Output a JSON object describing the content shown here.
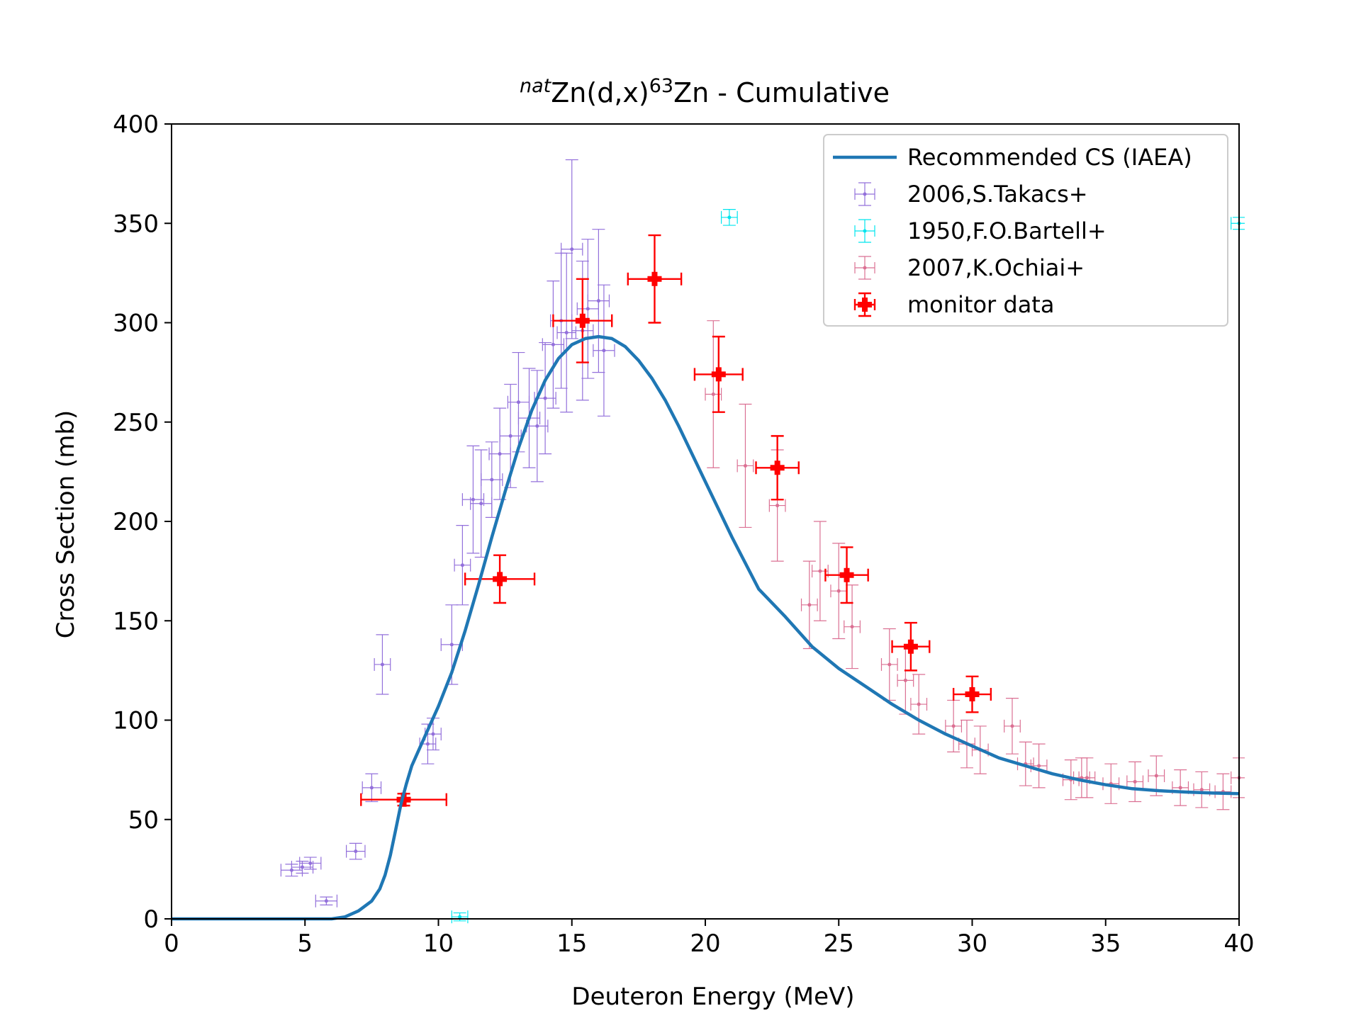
{
  "chart_data": {
    "type": "scatter",
    "title": {
      "prefix": "nat",
      "main": "Zn(d,x)",
      "mass": "63",
      "rest": "Zn - Cumulative"
    },
    "xlabel": "Deuteron Energy (MeV)",
    "ylabel": "Cross Section (mb)",
    "xlim": [
      0,
      40
    ],
    "ylim": [
      0,
      400
    ],
    "xticks": [
      0,
      5,
      10,
      15,
      20,
      25,
      30,
      35,
      40
    ],
    "yticks": [
      0,
      50,
      100,
      150,
      200,
      250,
      300,
      350,
      400
    ],
    "grid": false,
    "legend_position": "top-right",
    "series": [
      {
        "name": "Recommended CS (IAEA)",
        "kind": "line",
        "color": "#1f77b4",
        "points": [
          [
            0,
            0
          ],
          [
            6,
            0
          ],
          [
            6.5,
            1
          ],
          [
            7,
            4
          ],
          [
            7.5,
            9
          ],
          [
            7.8,
            15
          ],
          [
            8.0,
            22
          ],
          [
            8.2,
            32
          ],
          [
            8.4,
            45
          ],
          [
            8.6,
            58
          ],
          [
            8.8,
            68
          ],
          [
            9.0,
            77
          ],
          [
            9.3,
            86
          ],
          [
            9.6,
            95
          ],
          [
            10,
            107
          ],
          [
            10.5,
            124
          ],
          [
            11,
            145
          ],
          [
            11.5,
            168
          ],
          [
            12,
            192
          ],
          [
            12.5,
            215
          ],
          [
            13,
            237
          ],
          [
            13.5,
            256
          ],
          [
            14,
            271
          ],
          [
            14.5,
            282
          ],
          [
            15,
            289
          ],
          [
            15.5,
            292
          ],
          [
            16,
            293
          ],
          [
            16.5,
            292
          ],
          [
            17,
            288
          ],
          [
            17.5,
            281
          ],
          [
            18,
            272
          ],
          [
            18.5,
            261
          ],
          [
            19,
            248
          ],
          [
            19.5,
            234
          ],
          [
            20,
            220
          ],
          [
            21,
            192
          ],
          [
            22,
            166
          ],
          [
            23,
            152
          ],
          [
            24,
            137
          ],
          [
            25,
            126
          ],
          [
            26,
            117
          ],
          [
            27,
            108
          ],
          [
            28,
            100
          ],
          [
            29,
            93
          ],
          [
            30,
            87
          ],
          [
            31,
            81
          ],
          [
            32,
            77
          ],
          [
            33,
            73
          ],
          [
            34,
            70
          ],
          [
            35,
            67.5
          ],
          [
            36,
            65.5
          ],
          [
            37,
            64.5
          ],
          [
            38,
            63.8
          ],
          [
            39,
            63.3
          ],
          [
            40,
            63
          ]
        ]
      },
      {
        "name": "2006,S.Takacs+",
        "kind": "errorbar",
        "color": "#9370db",
        "points": [
          {
            "x": 4.5,
            "y": 24.5,
            "xerr": 0.4,
            "yerr": 3
          },
          {
            "x": 4.9,
            "y": 26,
            "xerr": 0.4,
            "yerr": 3
          },
          {
            "x": 5.2,
            "y": 28,
            "xerr": 0.4,
            "yerr": 3
          },
          {
            "x": 5.8,
            "y": 9,
            "xerr": 0.4,
            "yerr": 2
          },
          {
            "x": 6.9,
            "y": 34,
            "xerr": 0.35,
            "yerr": 4
          },
          {
            "x": 7.5,
            "y": 66,
            "xerr": 0.35,
            "yerr": 7
          },
          {
            "x": 7.9,
            "y": 128,
            "xerr": 0.3,
            "yerr": 15
          },
          {
            "x": 9.6,
            "y": 88,
            "xerr": 0.3,
            "yerr": 10
          },
          {
            "x": 9.8,
            "y": 93,
            "xerr": 0.3,
            "yerr": 8
          },
          {
            "x": 10.5,
            "y": 138,
            "xerr": 0.4,
            "yerr": 20
          },
          {
            "x": 10.9,
            "y": 178,
            "xerr": 0.3,
            "yerr": 20
          },
          {
            "x": 11.3,
            "y": 211,
            "xerr": 0.4,
            "yerr": 27
          },
          {
            "x": 11.6,
            "y": 209,
            "xerr": 0.4,
            "yerr": 27
          },
          {
            "x": 12.0,
            "y": 221,
            "xerr": 0.4,
            "yerr": 19
          },
          {
            "x": 12.3,
            "y": 234,
            "xerr": 0.4,
            "yerr": 23
          },
          {
            "x": 12.7,
            "y": 243,
            "xerr": 0.4,
            "yerr": 26
          },
          {
            "x": 13.0,
            "y": 260,
            "xerr": 0.4,
            "yerr": 25
          },
          {
            "x": 13.4,
            "y": 252,
            "xerr": 0.4,
            "yerr": 25
          },
          {
            "x": 13.7,
            "y": 248,
            "xerr": 0.4,
            "yerr": 28
          },
          {
            "x": 14.0,
            "y": 262,
            "xerr": 0.4,
            "yerr": 28
          },
          {
            "x": 14.3,
            "y": 289,
            "xerr": 0.4,
            "yerr": 32
          },
          {
            "x": 14.6,
            "y": 301,
            "xerr": 0.4,
            "yerr": 34
          },
          {
            "x": 14.8,
            "y": 295,
            "xerr": 0.35,
            "yerr": 40
          },
          {
            "x": 15.0,
            "y": 337,
            "xerr": 0.4,
            "yerr": 45
          },
          {
            "x": 15.4,
            "y": 296,
            "xerr": 0.4,
            "yerr": 35
          },
          {
            "x": 15.6,
            "y": 307,
            "xerr": 0.4,
            "yerr": 35
          },
          {
            "x": 16.0,
            "y": 311,
            "xerr": 0.4,
            "yerr": 36
          },
          {
            "x": 16.2,
            "y": 286,
            "xerr": 0.4,
            "yerr": 33
          }
        ]
      },
      {
        "name": "1950,F.O.Bartell+",
        "kind": "errorbar",
        "color": "#00e5ee",
        "points": [
          {
            "x": 10.8,
            "y": 1,
            "xerr": 0.3,
            "yerr": 2
          },
          {
            "x": 20.9,
            "y": 353,
            "xerr": 0.3,
            "yerr": 4
          },
          {
            "x": 40,
            "y": 350,
            "xerr": 0.3,
            "yerr": 3
          }
        ]
      },
      {
        "name": "2007,K.Ochiai+",
        "kind": "errorbar",
        "color": "#db7093",
        "points": [
          {
            "x": 20.3,
            "y": 264,
            "xerr": 0.3,
            "yerr": 37
          },
          {
            "x": 21.5,
            "y": 228,
            "xerr": 0.3,
            "yerr": 31
          },
          {
            "x": 22.7,
            "y": 208,
            "xerr": 0.3,
            "yerr": 28
          },
          {
            "x": 23.9,
            "y": 158,
            "xerr": 0.3,
            "yerr": 22
          },
          {
            "x": 24.3,
            "y": 175,
            "xerr": 0.3,
            "yerr": 25
          },
          {
            "x": 25.0,
            "y": 165,
            "xerr": 0.3,
            "yerr": 24
          },
          {
            "x": 25.5,
            "y": 147,
            "xerr": 0.3,
            "yerr": 21
          },
          {
            "x": 26.9,
            "y": 128,
            "xerr": 0.3,
            "yerr": 18
          },
          {
            "x": 27.5,
            "y": 120,
            "xerr": 0.3,
            "yerr": 17
          },
          {
            "x": 28.0,
            "y": 108,
            "xerr": 0.3,
            "yerr": 15
          },
          {
            "x": 29.3,
            "y": 97,
            "xerr": 0.3,
            "yerr": 13
          },
          {
            "x": 29.8,
            "y": 88,
            "xerr": 0.3,
            "yerr": 12
          },
          {
            "x": 30.3,
            "y": 85,
            "xerr": 0.3,
            "yerr": 12
          },
          {
            "x": 31.5,
            "y": 97,
            "xerr": 0.3,
            "yerr": 14
          },
          {
            "x": 32.0,
            "y": 78,
            "xerr": 0.3,
            "yerr": 11
          },
          {
            "x": 32.5,
            "y": 77,
            "xerr": 0.3,
            "yerr": 11
          },
          {
            "x": 33.7,
            "y": 70,
            "xerr": 0.3,
            "yerr": 10
          },
          {
            "x": 34.1,
            "y": 71,
            "xerr": 0.3,
            "yerr": 10
          },
          {
            "x": 34.3,
            "y": 71,
            "xerr": 0.3,
            "yerr": 10
          },
          {
            "x": 35.2,
            "y": 68,
            "xerr": 0.3,
            "yerr": 10
          },
          {
            "x": 36.1,
            "y": 69,
            "xerr": 0.3,
            "yerr": 10
          },
          {
            "x": 36.9,
            "y": 72,
            "xerr": 0.3,
            "yerr": 10
          },
          {
            "x": 37.8,
            "y": 66,
            "xerr": 0.3,
            "yerr": 9
          },
          {
            "x": 38.6,
            "y": 65,
            "xerr": 0.3,
            "yerr": 9
          },
          {
            "x": 39.4,
            "y": 64,
            "xerr": 0.3,
            "yerr": 9
          },
          {
            "x": 40.0,
            "y": 71,
            "xerr": 0.3,
            "yerr": 10
          }
        ]
      },
      {
        "name": "monitor data",
        "kind": "errorbar",
        "color": "#ff0000",
        "points": [
          {
            "x": 8.7,
            "y": 60,
            "xerr": 1.6,
            "yerr": 3
          },
          {
            "x": 12.3,
            "y": 171,
            "xerr": 1.3,
            "yerr": 12
          },
          {
            "x": 15.4,
            "y": 301,
            "xerr": 1.1,
            "yerr": 21
          },
          {
            "x": 18.1,
            "y": 322,
            "xerr": 1.0,
            "yerr": 22
          },
          {
            "x": 20.5,
            "y": 274,
            "xerr": 0.9,
            "yerr": 19
          },
          {
            "x": 22.7,
            "y": 227,
            "xerr": 0.8,
            "yerr": 16
          },
          {
            "x": 25.3,
            "y": 173,
            "xerr": 0.8,
            "yerr": 14
          },
          {
            "x": 27.7,
            "y": 137,
            "xerr": 0.7,
            "yerr": 12
          },
          {
            "x": 30.0,
            "y": 113,
            "xerr": 0.7,
            "yerr": 9
          }
        ]
      }
    ]
  }
}
